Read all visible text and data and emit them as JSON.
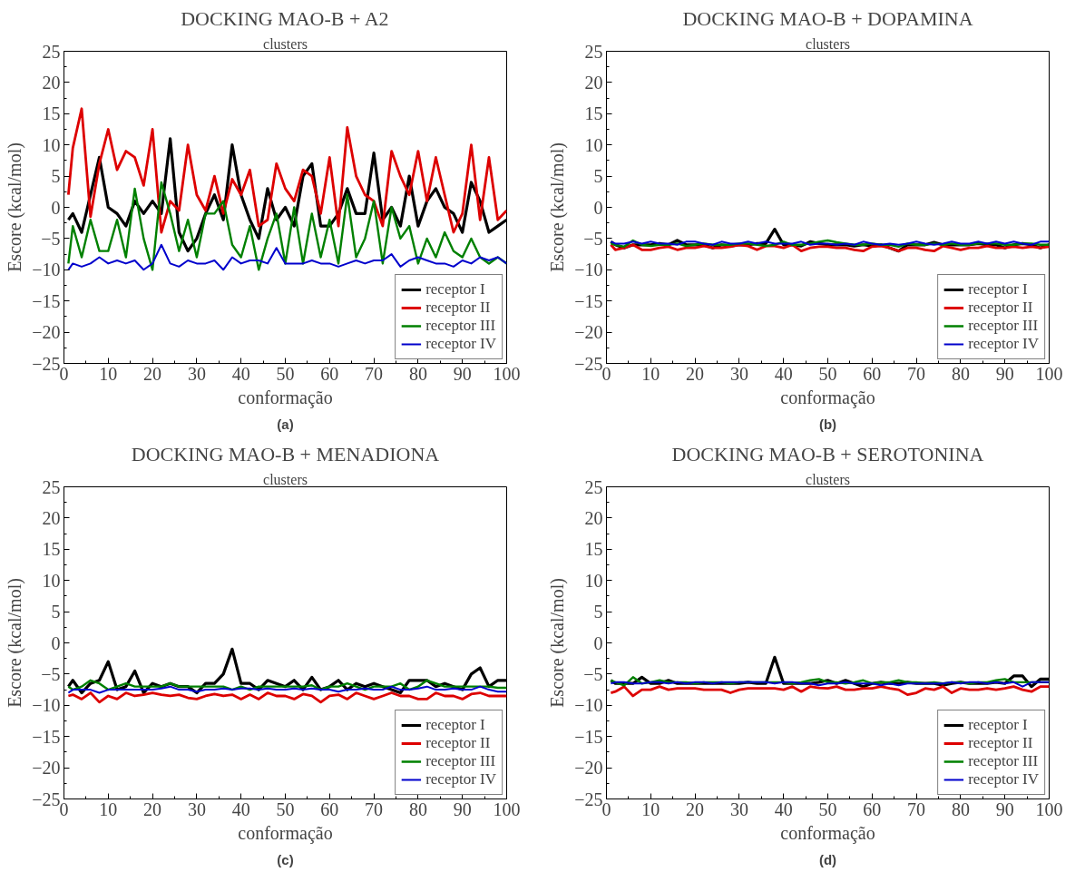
{
  "chart_data": [
    {
      "type": "line",
      "title": "DOCKING MAO-B + A2",
      "subtitle": "clusters",
      "xlabel": "conformação",
      "ylabel": "Escore (kcal/mol)",
      "annotations": [
        "(a)"
      ],
      "xlim": [
        0,
        100
      ],
      "ylim": [
        -25,
        25
      ],
      "xticks": [
        0,
        10,
        20,
        30,
        40,
        50,
        60,
        70,
        80,
        90,
        100
      ],
      "yticks": [
        -25,
        -20,
        -15,
        -10,
        -5,
        0,
        5,
        10,
        15,
        20,
        25
      ],
      "grid": false,
      "legend": "bottom right",
      "marker": "none",
      "line_style": "solid",
      "x": [
        1,
        2,
        4,
        6,
        8,
        10,
        12,
        14,
        16,
        18,
        20,
        22,
        24,
        26,
        28,
        30,
        32,
        34,
        36,
        38,
        40,
        42,
        44,
        46,
        48,
        50,
        52,
        54,
        56,
        58,
        60,
        62,
        64,
        66,
        68,
        70,
        72,
        74,
        76,
        78,
        80,
        82,
        84,
        86,
        88,
        90,
        92,
        94,
        96,
        98,
        100
      ],
      "series": [
        {
          "name": "receptor I",
          "color": "#000000",
          "values": [
            -2,
            -1,
            -4,
            2,
            8,
            0,
            -1,
            -3,
            1,
            -1,
            1,
            -1,
            11,
            -4,
            -7,
            -5,
            -1,
            2,
            -2,
            10,
            2,
            -2,
            -5,
            3,
            -2,
            0,
            -3,
            5,
            7,
            -3,
            -3,
            -1,
            3,
            -1,
            -1,
            8.7,
            -2,
            0,
            -3,
            5,
            -3,
            1,
            3,
            0,
            -1,
            -4,
            4,
            1,
            -4,
            -3,
            -2
          ]
        },
        {
          "name": "receptor II",
          "color": "#dd0000",
          "values": [
            2,
            9.5,
            15.8,
            -1.5,
            7,
            12.5,
            6,
            9,
            8,
            3.5,
            12.5,
            -4,
            1,
            -0.5,
            10,
            2,
            -0.5,
            5,
            -1,
            4.5,
            2,
            6,
            -3,
            -2,
            7,
            3,
            1,
            6,
            5,
            -1,
            8,
            -3,
            12.8,
            5,
            2,
            1,
            -3,
            9,
            5,
            2,
            9,
            1,
            8,
            2,
            -4,
            -1,
            10,
            -2,
            8,
            -2,
            -0.5
          ]
        },
        {
          "name": "receptor III",
          "color": "#008000",
          "values": [
            -9,
            -3,
            -8,
            -2,
            -7,
            -7,
            -2,
            -8,
            3,
            -5,
            -10,
            4,
            -1,
            -7,
            -2,
            -8,
            -1,
            -1,
            1,
            -6,
            -8,
            -3,
            -10,
            -5,
            -1,
            -9,
            0,
            -9,
            -1,
            -8,
            -2,
            -9,
            2,
            -8,
            -5,
            1,
            -9,
            0,
            -5,
            -3,
            -9,
            -5,
            -8,
            -4,
            -7,
            -8,
            -5,
            -8,
            -9,
            -8,
            -9
          ]
        },
        {
          "name": "receptor IV",
          "color": "#0000cc",
          "values": [
            -10,
            -9,
            -9.5,
            -9,
            -8,
            -9,
            -8.5,
            -9,
            -8.5,
            -10,
            -9,
            -6,
            -9,
            -9.5,
            -8.5,
            -9,
            -9,
            -8.5,
            -10,
            -8,
            -9,
            -8.5,
            -8.5,
            -9,
            -6.5,
            -9,
            -9,
            -9,
            -8.5,
            -9,
            -9,
            -9.5,
            -9,
            -8.5,
            -9,
            -8.5,
            -8.5,
            -7.5,
            -9.5,
            -8.5,
            -8,
            -8.5,
            -9,
            -9,
            -9.5,
            -8.5,
            -9,
            -8,
            -8.5,
            -8,
            -9
          ]
        }
      ]
    },
    {
      "type": "line",
      "title": "DOCKING MAO-B + DOPAMINA",
      "subtitle": "clusters",
      "xlabel": "conformação",
      "ylabel": "Escore (kcal/mol)",
      "annotations": [
        "(b)"
      ],
      "xlim": [
        0,
        100
      ],
      "ylim": [
        -25,
        25
      ],
      "xticks": [
        0,
        10,
        20,
        30,
        40,
        50,
        60,
        70,
        80,
        90,
        100
      ],
      "yticks": [
        -25,
        -20,
        -15,
        -10,
        -5,
        0,
        5,
        10,
        15,
        20,
        25
      ],
      "grid": false,
      "legend": "bottom right",
      "marker": "none",
      "line_style": "solid",
      "x": [
        1,
        2,
        4,
        6,
        8,
        10,
        12,
        14,
        16,
        18,
        20,
        22,
        24,
        26,
        28,
        30,
        32,
        34,
        36,
        38,
        40,
        42,
        44,
        46,
        48,
        50,
        52,
        54,
        56,
        58,
        60,
        62,
        64,
        66,
        68,
        70,
        72,
        74,
        76,
        78,
        80,
        82,
        84,
        86,
        88,
        90,
        92,
        94,
        96,
        98,
        100
      ],
      "series": [
        {
          "name": "receptor I",
          "color": "#000000",
          "values": [
            -5.5,
            -6,
            -6.5,
            -6,
            -6,
            -6,
            -5.8,
            -6,
            -5.3,
            -6,
            -6,
            -6,
            -6.5,
            -6,
            -6.2,
            -6,
            -6,
            -5.8,
            -5.8,
            -3.5,
            -6,
            -6,
            -6.2,
            -5.5,
            -5.8,
            -6,
            -6,
            -6,
            -6.2,
            -6,
            -6.2,
            -6,
            -6.5,
            -7,
            -6,
            -6,
            -6,
            -5.6,
            -6,
            -6,
            -6,
            -6,
            -5.8,
            -6,
            -6,
            -6.5,
            -6,
            -5.8,
            -6,
            -6.5,
            -6
          ]
        },
        {
          "name": "receptor II",
          "color": "#dd0000",
          "values": [
            -6,
            -6.8,
            -6.5,
            -6,
            -6.8,
            -6.8,
            -6.5,
            -6.3,
            -6.8,
            -6.5,
            -6.5,
            -6.2,
            -6.5,
            -6.5,
            -6.3,
            -6,
            -6.2,
            -6.8,
            -6.2,
            -6.2,
            -6.5,
            -6,
            -7,
            -6.5,
            -6.3,
            -6.3,
            -6.5,
            -6.5,
            -6.8,
            -7,
            -6.3,
            -6.2,
            -6.5,
            -7,
            -6.5,
            -6.5,
            -6.8,
            -7,
            -6.2,
            -6.5,
            -6.8,
            -6.5,
            -6.5,
            -6.2,
            -6.5,
            -6.5,
            -6.3,
            -6.5,
            -6.3,
            -6.5,
            -6.3
          ]
        },
        {
          "name": "receptor III",
          "color": "#008000",
          "values": [
            -5.8,
            -6,
            -6.3,
            -5.3,
            -6,
            -6.2,
            -6,
            -6,
            -5.8,
            -6.2,
            -6,
            -5.8,
            -6,
            -6,
            -6,
            -5.8,
            -5.8,
            -6,
            -6.2,
            -6,
            -5.5,
            -6,
            -6,
            -5.8,
            -5.5,
            -5.3,
            -5.6,
            -5.8,
            -6,
            -6,
            -5.8,
            -6,
            -6,
            -6.3,
            -5.8,
            -6,
            -6,
            -5.8,
            -6,
            -5.8,
            -6,
            -6,
            -5.8,
            -5.8,
            -5.8,
            -6,
            -6,
            -5.8,
            -5.8,
            -6,
            -6
          ]
        },
        {
          "name": "receptor IV",
          "color": "#0000cc",
          "values": [
            -5.5,
            -5.8,
            -5.8,
            -5.5,
            -5.8,
            -5.5,
            -5.8,
            -5.8,
            -6,
            -5.5,
            -5.5,
            -5.8,
            -6,
            -5.5,
            -5.8,
            -5.8,
            -5.5,
            -5.8,
            -5.5,
            -5.8,
            -5.8,
            -5.8,
            -5.5,
            -6,
            -5.8,
            -5.8,
            -6,
            -5.8,
            -6,
            -5.5,
            -5.8,
            -6,
            -5.8,
            -6,
            -5.8,
            -5.5,
            -5.8,
            -6,
            -5.8,
            -5.5,
            -5.8,
            -5.8,
            -5.5,
            -5.8,
            -5.5,
            -5.8,
            -5.5,
            -5.8,
            -6,
            -5.5,
            -5.5
          ]
        }
      ]
    },
    {
      "type": "line",
      "title": "DOCKING MAO-B + MENADIONA",
      "subtitle": "clusters",
      "xlabel": "conformação",
      "ylabel": "Escore (kcal/mol)",
      "annotations": [
        "(c)"
      ],
      "xlim": [
        0,
        100
      ],
      "ylim": [
        -25,
        25
      ],
      "xticks": [
        0,
        10,
        20,
        30,
        40,
        50,
        60,
        70,
        80,
        90,
        100
      ],
      "yticks": [
        -25,
        -20,
        -15,
        -10,
        -5,
        0,
        5,
        10,
        15,
        20,
        25
      ],
      "grid": false,
      "legend": "bottom right",
      "marker": "none",
      "line_style": "solid",
      "x": [
        1,
        2,
        4,
        6,
        8,
        10,
        12,
        14,
        16,
        18,
        20,
        22,
        24,
        26,
        28,
        30,
        32,
        34,
        36,
        38,
        40,
        42,
        44,
        46,
        48,
        50,
        52,
        54,
        56,
        58,
        60,
        62,
        64,
        66,
        68,
        70,
        72,
        74,
        76,
        78,
        80,
        82,
        84,
        86,
        88,
        90,
        92,
        94,
        96,
        98,
        100
      ],
      "series": [
        {
          "name": "receptor I",
          "color": "#000000",
          "values": [
            -7,
            -6,
            -8,
            -6.5,
            -6,
            -3,
            -7.5,
            -7,
            -4.5,
            -8,
            -6.5,
            -7,
            -6.5,
            -7,
            -7,
            -8,
            -6.5,
            -6.5,
            -5,
            -1,
            -6.5,
            -6.5,
            -7.5,
            -6,
            -6.5,
            -7,
            -6,
            -7.5,
            -5.5,
            -7.5,
            -7,
            -6,
            -7.5,
            -6.5,
            -7,
            -6.5,
            -7,
            -7.5,
            -8,
            -6,
            -6,
            -6,
            -7,
            -6.5,
            -7,
            -7.5,
            -5,
            -4,
            -7,
            -6,
            -6
          ]
        },
        {
          "name": "receptor II",
          "color": "#dd0000",
          "values": [
            -8.5,
            -8.3,
            -9,
            -8,
            -9.5,
            -8.5,
            -9,
            -8,
            -8.5,
            -8.3,
            -8,
            -8.3,
            -8.5,
            -8.3,
            -8.8,
            -9,
            -8.5,
            -8.2,
            -8.5,
            -8.3,
            -9,
            -8.3,
            -9,
            -8,
            -8.5,
            -8.5,
            -9,
            -8.2,
            -8.5,
            -9.5,
            -8.5,
            -8.3,
            -9,
            -8,
            -8.5,
            -9,
            -8.5,
            -8,
            -8.5,
            -8.5,
            -9,
            -9,
            -8,
            -8.5,
            -8.5,
            -9,
            -8.2,
            -8,
            -8.5,
            -8.5,
            -8.5
          ]
        },
        {
          "name": "receptor III",
          "color": "#008000",
          "values": [
            -7,
            -7.5,
            -7,
            -6,
            -6.5,
            -7.5,
            -7,
            -6.5,
            -7,
            -7,
            -7,
            -7,
            -6.5,
            -7,
            -7,
            -7,
            -7,
            -7,
            -7,
            -7.5,
            -7,
            -7.5,
            -7,
            -7,
            -7,
            -7,
            -7,
            -7,
            -6.8,
            -7.5,
            -7,
            -7,
            -6.5,
            -7,
            -7.5,
            -7,
            -7,
            -7,
            -6.5,
            -7.5,
            -7,
            -6,
            -6.5,
            -7,
            -7,
            -7,
            -7,
            -7,
            -7,
            -7.2,
            -7.2
          ]
        },
        {
          "name": "receptor IV",
          "color": "#0000cc",
          "values": [
            -8,
            -7.5,
            -7.5,
            -7.5,
            -8,
            -7.5,
            -7.5,
            -7.5,
            -7.5,
            -7.5,
            -7.5,
            -7.3,
            -7,
            -7.5,
            -7.5,
            -7.8,
            -7.5,
            -7.5,
            -7.3,
            -7.5,
            -7.3,
            -7.3,
            -7.5,
            -7.3,
            -7.5,
            -7.5,
            -7.3,
            -7.5,
            -7.3,
            -7.5,
            -7.5,
            -7.8,
            -7.5,
            -7.5,
            -7.3,
            -7.5,
            -7.5,
            -7,
            -7.5,
            -7.5,
            -7.3,
            -7,
            -7.5,
            -7.5,
            -7.3,
            -7.5,
            -7.5,
            -7,
            -7.5,
            -7.8,
            -7.8
          ]
        }
      ]
    },
    {
      "type": "line",
      "title": "DOCKING MAO-B + SEROTONINA",
      "subtitle": "clusters",
      "xlabel": "conformação",
      "ylabel": "Escore (kcal/mol)",
      "annotations": [
        "(d)"
      ],
      "xlim": [
        0,
        100
      ],
      "ylim": [
        -25,
        25
      ],
      "xticks": [
        0,
        10,
        20,
        30,
        40,
        50,
        60,
        70,
        80,
        90,
        100
      ],
      "yticks": [
        -25,
        -20,
        -15,
        -10,
        -5,
        0,
        5,
        10,
        15,
        20,
        25
      ],
      "grid": false,
      "legend": "bottom right",
      "marker": "none",
      "line_style": "solid",
      "x": [
        1,
        2,
        4,
        6,
        8,
        10,
        12,
        14,
        16,
        18,
        20,
        22,
        24,
        26,
        28,
        30,
        32,
        34,
        36,
        38,
        40,
        42,
        44,
        46,
        48,
        50,
        52,
        54,
        56,
        58,
        60,
        62,
        64,
        66,
        68,
        70,
        72,
        74,
        76,
        78,
        80,
        82,
        84,
        86,
        88,
        90,
        92,
        94,
        96,
        98,
        100
      ],
      "series": [
        {
          "name": "receptor I",
          "color": "#000000",
          "values": [
            -6,
            -6.5,
            -6.5,
            -6.5,
            -5.5,
            -6.5,
            -6.5,
            -6,
            -6.5,
            -6.5,
            -6.5,
            -6.5,
            -6.5,
            -6.5,
            -6.5,
            -6.5,
            -6.3,
            -6.5,
            -6.5,
            -2.3,
            -6.5,
            -6.5,
            -6.5,
            -6.5,
            -6.3,
            -6,
            -6.5,
            -6,
            -6.5,
            -7,
            -6.5,
            -6.3,
            -6.5,
            -6.5,
            -6.3,
            -6.5,
            -6.5,
            -6.5,
            -6.8,
            -6.5,
            -6.3,
            -6.5,
            -6.5,
            -6.5,
            -6.3,
            -6.5,
            -5.3,
            -5.3,
            -7,
            -5.8,
            -5.8
          ]
        },
        {
          "name": "receptor II",
          "color": "#dd0000",
          "values": [
            -8,
            -7.8,
            -7,
            -8.5,
            -7.5,
            -7.5,
            -7,
            -7.5,
            -7.3,
            -7.3,
            -7.3,
            -7.5,
            -7.5,
            -7.5,
            -8,
            -7.5,
            -7.3,
            -7.3,
            -7.3,
            -7.3,
            -7.5,
            -7,
            -7.8,
            -7,
            -7.2,
            -7.3,
            -7,
            -7.5,
            -7.5,
            -7.3,
            -7.3,
            -7,
            -7.3,
            -7.5,
            -8.3,
            -8,
            -7.3,
            -7.5,
            -7,
            -8,
            -7.3,
            -7.5,
            -7.5,
            -7.3,
            -7.5,
            -7.3,
            -7,
            -7.5,
            -7.8,
            -7,
            -7
          ]
        },
        {
          "name": "receptor III",
          "color": "#008000",
          "values": [
            -6,
            -6.3,
            -6.8,
            -5.5,
            -6.5,
            -6.3,
            -6,
            -6.3,
            -6.3,
            -6.3,
            -6.5,
            -6.3,
            -6.3,
            -6.3,
            -6.5,
            -6.3,
            -6.3,
            -6.3,
            -6.3,
            -6.3,
            -6.3,
            -6.5,
            -6.3,
            -6,
            -5.8,
            -6.3,
            -6.3,
            -6.5,
            -6.3,
            -6,
            -6.5,
            -6.3,
            -6.3,
            -6,
            -6.3,
            -6.3,
            -6.5,
            -6.3,
            -6.5,
            -6.3,
            -6.3,
            -6.5,
            -6.3,
            -6.3,
            -6,
            -5.8,
            -6.3,
            -6.3,
            -6.3,
            -6.3,
            -6.3
          ]
        },
        {
          "name": "receptor IV",
          "color": "#0000cc",
          "values": [
            -6.5,
            -6.3,
            -6.3,
            -6.5,
            -6.5,
            -6.3,
            -6.3,
            -6.5,
            -6.3,
            -6.5,
            -6.3,
            -6.3,
            -6.5,
            -6.3,
            -6.3,
            -6.3,
            -6.3,
            -6.3,
            -6.3,
            -6.5,
            -6.3,
            -6.3,
            -6.5,
            -6.5,
            -6.8,
            -6.5,
            -6.5,
            -6.3,
            -6.5,
            -6.5,
            -6.5,
            -6.8,
            -6.5,
            -6.8,
            -6.5,
            -6.5,
            -6.5,
            -6.5,
            -6.5,
            -6.3,
            -6.5,
            -6.3,
            -6.3,
            -6.5,
            -6.3,
            -6.5,
            -6.3,
            -7,
            -6.3,
            -6.3,
            -6.3
          ]
        }
      ]
    }
  ]
}
